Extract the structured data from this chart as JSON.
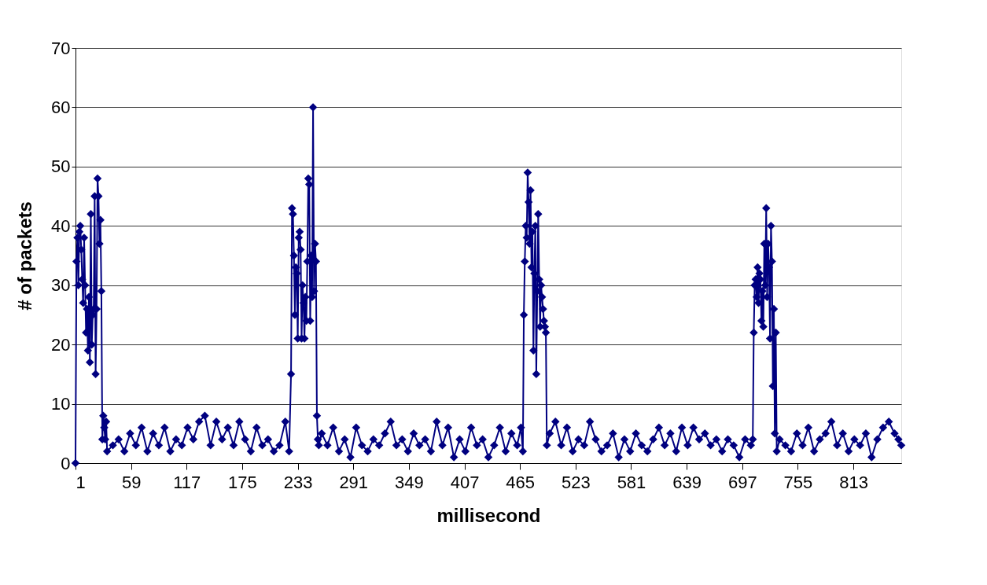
{
  "chart_data": {
    "type": "line",
    "xlabel": "millisecond",
    "ylabel": "# of packets",
    "x": [
      1,
      2,
      3,
      4,
      5,
      6,
      7,
      8,
      9,
      10,
      11,
      12,
      13,
      14,
      15,
      16,
      17,
      18,
      19,
      20,
      21,
      22,
      23,
      24,
      25,
      26,
      27,
      28,
      29,
      30,
      31,
      32,
      33,
      34,
      40,
      46,
      52,
      58,
      64,
      70,
      76,
      82,
      88,
      94,
      100,
      106,
      112,
      118,
      124,
      130,
      136,
      142,
      148,
      154,
      160,
      166,
      172,
      178,
      184,
      190,
      196,
      202,
      208,
      214,
      220,
      224,
      226,
      227,
      228,
      229,
      230,
      231,
      232,
      233,
      234,
      235,
      236,
      237,
      238,
      239,
      240,
      241,
      242,
      243,
      244,
      245,
      246,
      247,
      248,
      249,
      250,
      251,
      252,
      253,
      254,
      255,
      258,
      264,
      270,
      276,
      282,
      288,
      294,
      300,
      306,
      312,
      318,
      324,
      330,
      336,
      342,
      348,
      354,
      360,
      366,
      372,
      378,
      384,
      390,
      396,
      402,
      408,
      414,
      420,
      426,
      432,
      438,
      444,
      450,
      456,
      462,
      466,
      468,
      469,
      470,
      471,
      472,
      473,
      474,
      475,
      476,
      477,
      478,
      479,
      480,
      481,
      482,
      483,
      484,
      485,
      486,
      487,
      488,
      489,
      490,
      491,
      492,
      493,
      496,
      502,
      508,
      514,
      520,
      526,
      532,
      538,
      544,
      550,
      556,
      562,
      568,
      574,
      580,
      586,
      592,
      598,
      604,
      610,
      616,
      622,
      628,
      634,
      640,
      646,
      652,
      658,
      664,
      670,
      676,
      682,
      688,
      694,
      700,
      706,
      708,
      709,
      710,
      711,
      712,
      713,
      714,
      715,
      716,
      717,
      718,
      719,
      720,
      721,
      722,
      723,
      724,
      725,
      726,
      727,
      728,
      729,
      730,
      731,
      732,
      733,
      736,
      742,
      748,
      754,
      760,
      766,
      772,
      778,
      784,
      790,
      796,
      802,
      808,
      814,
      820,
      826,
      832,
      838,
      844,
      850,
      856,
      860,
      863
    ],
    "series": [
      {
        "color": "#000080",
        "values": [
          0,
          34,
          38,
          30,
          39,
          40,
          36,
          31,
          27,
          38,
          30,
          22,
          26,
          19,
          28,
          17,
          42,
          20,
          25,
          26,
          45,
          15,
          26,
          48,
          45,
          37,
          41,
          29,
          4,
          8,
          6,
          4,
          7,
          2,
          3,
          4,
          2,
          5,
          3,
          6,
          2,
          5,
          3,
          6,
          2,
          4,
          3,
          6,
          4,
          7,
          8,
          3,
          7,
          4,
          6,
          3,
          7,
          4,
          2,
          6,
          3,
          4,
          2,
          3,
          7,
          2,
          15,
          43,
          42,
          35,
          25,
          33,
          32,
          21,
          38,
          39,
          36,
          21,
          30,
          27,
          21,
          28,
          24,
          34,
          48,
          47,
          24,
          35,
          28,
          60,
          29,
          37,
          34,
          8,
          4,
          3,
          5,
          3,
          6,
          2,
          4,
          1,
          6,
          3,
          2,
          4,
          3,
          5,
          7,
          3,
          4,
          2,
          5,
          3,
          4,
          2,
          7,
          3,
          6,
          1,
          4,
          2,
          6,
          3,
          4,
          1,
          3,
          6,
          2,
          5,
          3,
          6,
          2,
          25,
          34,
          40,
          38,
          49,
          44,
          37,
          46,
          33,
          39,
          19,
          32,
          40,
          15,
          29,
          42,
          31,
          23,
          30,
          28,
          26,
          24,
          23,
          22,
          3,
          5,
          7,
          3,
          6,
          2,
          4,
          3,
          7,
          4,
          2,
          3,
          5,
          1,
          4,
          2,
          5,
          3,
          2,
          4,
          6,
          3,
          5,
          2,
          6,
          3,
          6,
          4,
          5,
          3,
          4,
          2,
          4,
          3,
          1,
          4,
          3,
          4,
          22,
          30,
          31,
          28,
          33,
          27,
          32,
          31,
          24,
          29,
          23,
          37,
          30,
          43,
          28,
          37,
          33,
          21,
          40,
          34,
          13,
          26,
          5,
          22,
          2,
          4,
          3,
          2,
          5,
          3,
          6,
          2,
          4,
          5,
          7,
          3,
          5,
          2,
          4,
          3,
          5,
          1,
          4,
          6,
          7,
          5,
          4,
          3
        ]
      }
    ],
    "xlim": [
      1,
      863
    ],
    "xticks": [
      1,
      59,
      117,
      175,
      233,
      291,
      349,
      407,
      465,
      523,
      581,
      639,
      697,
      755,
      813
    ],
    "ylim": [
      0,
      70
    ],
    "yticks": [
      0,
      10,
      20,
      30,
      40,
      50,
      60,
      70
    ],
    "grid": "y",
    "legend": false,
    "marker": "diamond",
    "line_style": "solid"
  }
}
